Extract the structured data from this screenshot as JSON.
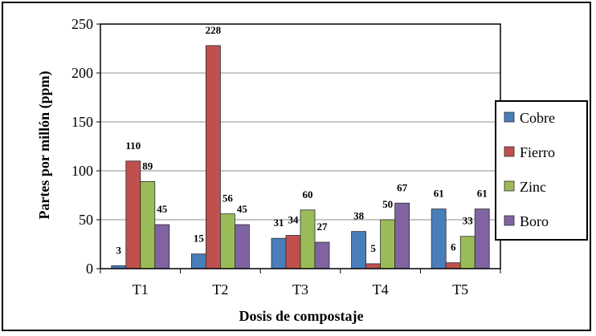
{
  "chart_data": {
    "type": "bar",
    "xlabel": "Dosis de compostaje",
    "ylabel": "Partes por millón (ppm)",
    "ylim": [
      0,
      250
    ],
    "yticks": [
      0,
      50,
      100,
      150,
      200,
      250
    ],
    "grid": "horizontal",
    "legend_position": "right",
    "categories": [
      "T1",
      "T2",
      "T3",
      "T4",
      "T5"
    ],
    "series": [
      {
        "name": "Cobre",
        "color": "#4a7ebb",
        "values": [
          3,
          15,
          31,
          38,
          61
        ]
      },
      {
        "name": "Fierro",
        "color": "#c0504d",
        "values": [
          110,
          228,
          34,
          5,
          6
        ]
      },
      {
        "name": "Zinc",
        "color": "#9bbb59",
        "values": [
          89,
          56,
          60,
          50,
          33
        ]
      },
      {
        "name": "Boro",
        "color": "#8064a2",
        "values": [
          45,
          45,
          27,
          67,
          61
        ]
      }
    ]
  }
}
